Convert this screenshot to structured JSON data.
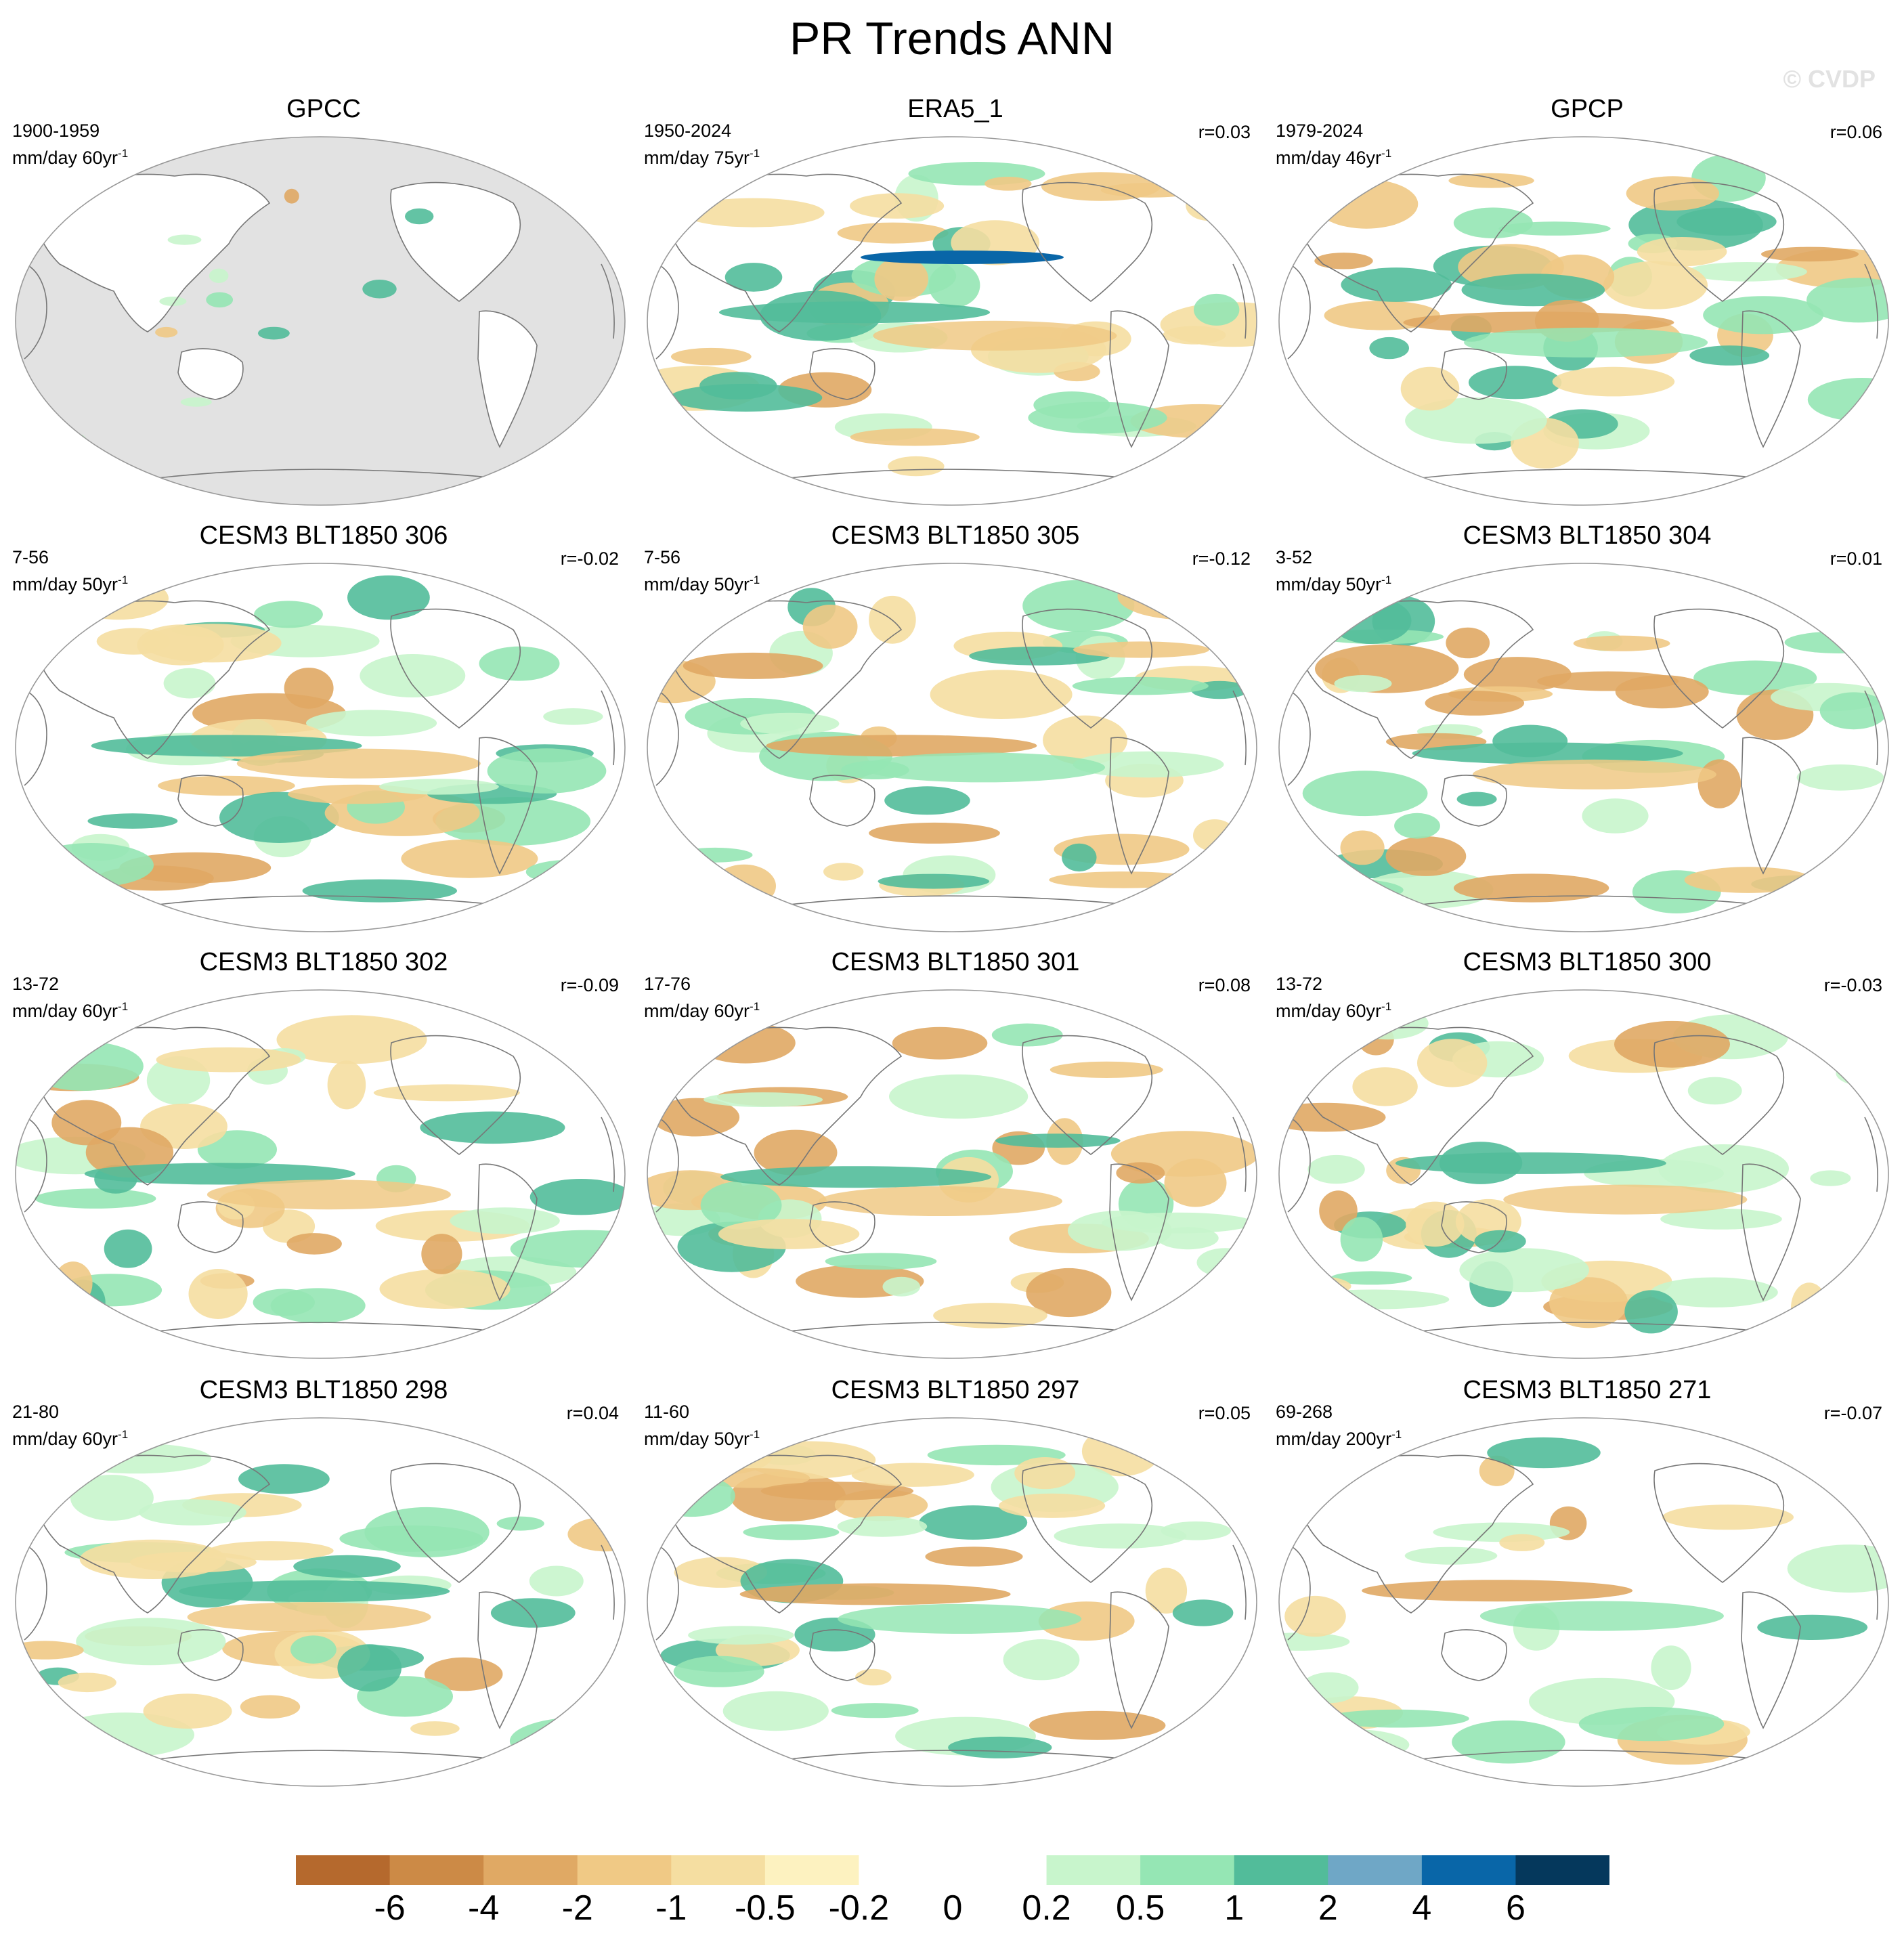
{
  "title": "PR Trends ANN",
  "watermark": "© CVDP",
  "panels": [
    {
      "title": "GPCC",
      "range": "1900-1959",
      "units": "mm/day 60yr",
      "corr": ""
    },
    {
      "title": "ERA5_1",
      "range": "1950-2024",
      "units": "mm/day 75yr",
      "corr": "r=0.03"
    },
    {
      "title": "GPCP",
      "range": "1979-2024",
      "units": "mm/day 46yr",
      "corr": "r=0.06"
    },
    {
      "title": "CESM3 BLT1850 306",
      "range": "7-56",
      "units": "mm/day 50yr",
      "corr": "r=-0.02"
    },
    {
      "title": "CESM3 BLT1850 305",
      "range": "7-56",
      "units": "mm/day 50yr",
      "corr": "r=-0.12"
    },
    {
      "title": "CESM3 BLT1850 304",
      "range": "3-52",
      "units": "mm/day 50yr",
      "corr": "r=0.01"
    },
    {
      "title": "CESM3 BLT1850 302",
      "range": "13-72",
      "units": "mm/day 60yr",
      "corr": "r=-0.09"
    },
    {
      "title": "CESM3 BLT1850 301",
      "range": "17-76",
      "units": "mm/day 60yr",
      "corr": "r=0.08"
    },
    {
      "title": "CESM3 BLT1850 300",
      "range": "13-72",
      "units": "mm/day 60yr",
      "corr": "r=-0.03"
    },
    {
      "title": "CESM3 BLT1850 298",
      "range": "21-80",
      "units": "mm/day 60yr",
      "corr": "r=0.04"
    },
    {
      "title": "CESM3 BLT1850 297",
      "range": "11-60",
      "units": "mm/day 50yr",
      "corr": "r=0.05"
    },
    {
      "title": "CESM3 BLT1850 271",
      "range": "69-268",
      "units": "mm/day 200yr",
      "corr": "r=-0.07"
    }
  ],
  "units_exponent": "-1",
  "colorbar": {
    "labels": [
      "-6",
      "-4",
      "-2",
      "-1",
      "-0.5",
      "-0.2",
      "0",
      "0.2",
      "0.5",
      "1",
      "2",
      "4",
      "6"
    ],
    "colors": [
      "#b5692d",
      "#cc8a46",
      "#e0a964",
      "#f0c985",
      "#f5dea1",
      "#fdf2c0",
      "#ffffff",
      "#ffffff",
      "#c8f5cc",
      "#95e6b4",
      "#52bc9a",
      "#6fa7c6",
      "#0966a8",
      "#05385c"
    ]
  },
  "colors": {
    "ocean_mask": "#e2e2e2",
    "coast": "#777777",
    "border": "#999999"
  }
}
